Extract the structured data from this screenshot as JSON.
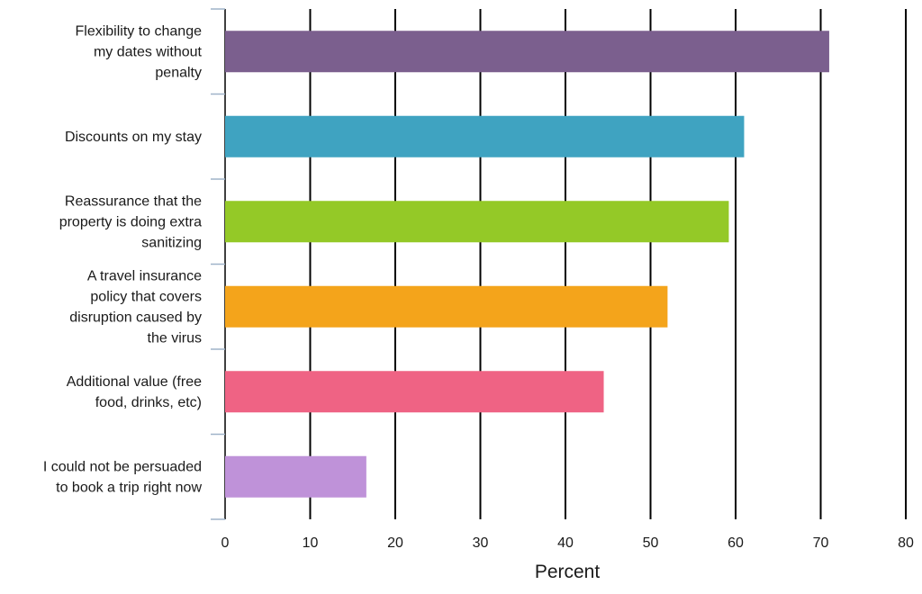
{
  "chart_data": {
    "type": "bar",
    "orientation": "horizontal",
    "categories": [
      [
        "Flexibility to change",
        "my dates without",
        "penalty"
      ],
      [
        "Discounts on my stay"
      ],
      [
        "Reassurance that the",
        "property is doing extra",
        "sanitizing"
      ],
      [
        "A travel insurance",
        "policy that covers",
        "disruption caused by",
        "the virus"
      ],
      [
        "Additional value (free",
        "food, drinks, etc)"
      ],
      [
        "I could not be persuaded",
        "to book a trip right now"
      ]
    ],
    "values": [
      71,
      61,
      59.2,
      52,
      44.5,
      16.6
    ],
    "colors": [
      "#7b5f8e",
      "#3fa3c1",
      "#94c927",
      "#f4a41b",
      "#ef6384",
      "#bf92d9"
    ],
    "xlabel": "Percent",
    "ylabel": "",
    "xlim": [
      0,
      80
    ],
    "xticks": [
      "0",
      "10",
      "20",
      "30",
      "40",
      "50",
      "60",
      "70",
      "80"
    ],
    "grid": "vertical",
    "legend": "none"
  }
}
